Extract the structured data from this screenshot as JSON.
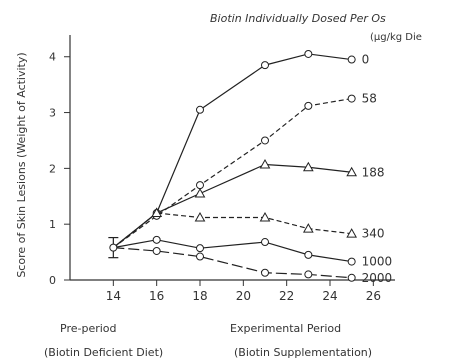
{
  "chart_data": {
    "type": "line",
    "title": "Biotin Individually Dosed Per Os",
    "legend_unit": "(µg/kg Die",
    "ylabel": "Score of Skin Lesions (Weight of Activity)",
    "x_labels": {
      "preperiod_line1": "Pre-period",
      "preperiod_line2": "(Biotin Deficient Diet)",
      "experimental_line1": "Experimental Period",
      "experimental_line2": "(Biotin Supplementation)"
    },
    "x_ticks": [
      "14",
      "16",
      "18",
      "20",
      "22",
      "24",
      "26"
    ],
    "y_ticks": [
      "0",
      "1",
      "2",
      "3",
      "4"
    ],
    "xlim": [
      12,
      27
    ],
    "ylim": [
      0,
      4.3
    ],
    "baseline": {
      "x": 14,
      "y": 0.58,
      "error_low": 0.4,
      "error_high": 0.76
    },
    "series": [
      {
        "name": "0",
        "marker": "circle",
        "dash": "solid",
        "points": [
          [
            14,
            0.58
          ],
          [
            16,
            1.2
          ],
          [
            18,
            3.05
          ],
          [
            21,
            3.85
          ],
          [
            23,
            4.05
          ],
          [
            25,
            3.95
          ]
        ]
      },
      {
        "name": "58",
        "marker": "circle",
        "dash": "dashed",
        "points": [
          [
            14,
            0.58
          ],
          [
            16,
            1.15
          ],
          [
            18,
            1.7
          ],
          [
            21,
            2.5
          ],
          [
            23,
            3.12
          ],
          [
            25,
            3.25
          ]
        ]
      },
      {
        "name": "188",
        "marker": "triangle",
        "dash": "solid",
        "points": [
          [
            14,
            0.58
          ],
          [
            16,
            1.2
          ],
          [
            18,
            1.55
          ],
          [
            21,
            2.07
          ],
          [
            23,
            2.02
          ],
          [
            25,
            1.93
          ]
        ]
      },
      {
        "name": "340",
        "marker": "triangle",
        "dash": "dashed",
        "points": [
          [
            14,
            0.58
          ],
          [
            16,
            1.2
          ],
          [
            18,
            1.12
          ],
          [
            21,
            1.12
          ],
          [
            23,
            0.92
          ],
          [
            25,
            0.83
          ]
        ]
      },
      {
        "name": "1000",
        "marker": "circle",
        "dash": "solid",
        "points": [
          [
            14,
            0.58
          ],
          [
            16,
            0.72
          ],
          [
            18,
            0.57
          ],
          [
            21,
            0.68
          ],
          [
            23,
            0.45
          ],
          [
            25,
            0.33
          ]
        ]
      },
      {
        "name": "2000",
        "marker": "circle",
        "dash": "longdash",
        "points": [
          [
            14,
            0.58
          ],
          [
            16,
            0.52
          ],
          [
            18,
            0.42
          ],
          [
            21,
            0.13
          ],
          [
            23,
            0.1
          ],
          [
            25,
            0.04
          ]
        ]
      }
    ]
  }
}
